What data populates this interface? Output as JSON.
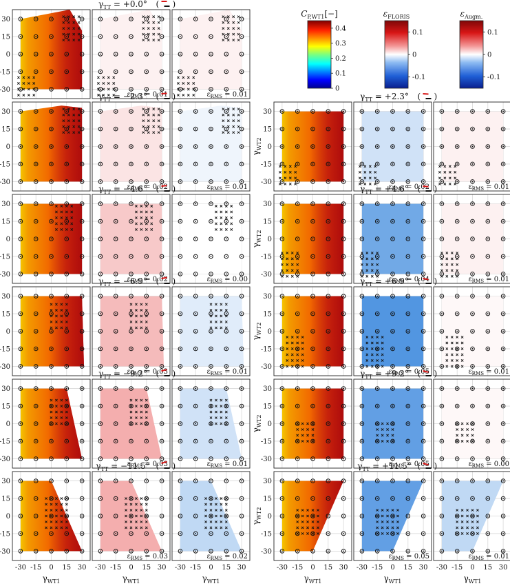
{
  "labels": {
    "gamma_tt": "γ",
    "gamma_tt_sub": "TT",
    "y_axis": "γ",
    "y_axis_sub": "WT2",
    "x_axis": "γ",
    "x_axis_sub": "WT1",
    "rms_sym": "ε",
    "rms_sub": "RMS"
  },
  "colorbars": [
    {
      "key": "cp",
      "title": "C",
      "title_sub": "P,WT1",
      "title_suffix": "[−]",
      "ticks": [
        "0.4",
        "0.3",
        "0.2",
        "0.1",
        "0"
      ],
      "tick_values": [
        0.4,
        0.3,
        0.2,
        0.1,
        0
      ],
      "range": [
        0,
        0.45
      ],
      "colormap": "jet"
    },
    {
      "key": "floris",
      "title": "ε",
      "title_sub": "FLORIS",
      "title_suffix": "",
      "ticks": [
        "0.1",
        "0",
        "-0.1"
      ],
      "tick_values": [
        0.1,
        0,
        -0.1
      ],
      "range": [
        -0.15,
        0.15
      ],
      "colormap": "diverging"
    },
    {
      "key": "augm",
      "title": "ε",
      "title_sub": "Augm.",
      "title_suffix": "",
      "ticks": [
        "0.1",
        "0",
        "-0.1"
      ],
      "tick_values": [
        0.1,
        0,
        -0.1
      ],
      "range": [
        -0.15,
        0.15
      ],
      "colormap": "diverging"
    }
  ],
  "colors": {
    "cp_high": "#c81010",
    "cp_mid": "#f26a00",
    "cp_low": "#f5c400",
    "pos_err": "#f4a3a3",
    "neg_err": "#6aa8e8",
    "grid": "#d8d8d8"
  },
  "chart_data": {
    "type": "heatmap",
    "x_ticks": [
      "-30",
      "-15",
      "0",
      "15",
      "30"
    ],
    "y_ticks": [
      "30",
      "15",
      "0",
      "-15",
      "-30"
    ],
    "tick_values": [
      -30,
      -15,
      0,
      15,
      30
    ],
    "panel_types": [
      "cp",
      "floris",
      "augm"
    ],
    "cases": [
      {
        "label": "= +0.0°",
        "col": 0,
        "row": 0,
        "rms_floris": "= 0.01",
        "rms_augm": "= 0.01",
        "floris_err": 0.01,
        "augm_err": 0.01
      },
      {
        "label": "= −2.3°",
        "col": 0,
        "row": 1,
        "rms_floris": "= 0.02",
        "rms_augm": "= 0.01",
        "floris_err": 0.02,
        "augm_err": -0.01
      },
      {
        "label": "= +2.3°",
        "col": 1,
        "row": 1,
        "rms_floris": "= 0.02",
        "rms_augm": "= 0.01",
        "floris_err": -0.03,
        "augm_err": 0.01
      },
      {
        "label": "= −4.6°",
        "col": 0,
        "row": 2,
        "rms_floris": "= 0.02",
        "rms_augm": "= 0.00",
        "floris_err": 0.04,
        "augm_err": 0.0
      },
      {
        "label": "= +4.6°",
        "col": 1,
        "row": 2,
        "rms_floris": "= 0.04",
        "rms_augm": "= 0.01",
        "floris_err": -0.09,
        "augm_err": 0.01
      },
      {
        "label": "= −6.9°",
        "col": 0,
        "row": 3,
        "rms_floris": "= 0.03",
        "rms_augm": "= 0.01",
        "floris_err": 0.05,
        "augm_err": -0.02
      },
      {
        "label": "= +6.9°",
        "col": 1,
        "row": 3,
        "rms_floris": "= 0.05",
        "rms_augm": "= 0.01",
        "floris_err": -0.11,
        "augm_err": 0.005
      },
      {
        "label": "= −9.2°",
        "col": 0,
        "row": 4,
        "rms_floris": "= 0.03",
        "rms_augm": "= 0.01",
        "floris_err": 0.06,
        "augm_err": -0.03
      },
      {
        "label": "= +9.2°",
        "col": 1,
        "row": 4,
        "rms_floris": "= 0.05",
        "rms_augm": "= 0.00",
        "floris_err": -0.1,
        "augm_err": 0.005
      },
      {
        "label": "= −11.5°",
        "col": 0,
        "row": 5,
        "rms_floris": "= 0.03",
        "rms_augm": "= 0.02",
        "floris_err": 0.06,
        "augm_err": -0.04
      },
      {
        "label": "= +11.5°",
        "col": 1,
        "row": 5,
        "rms_floris": "= 0.05",
        "rms_augm": "= 0.01",
        "floris_err": -0.1,
        "augm_err": -0.04
      }
    ],
    "measurement_points": [
      [
        -30,
        30
      ],
      [
        -15,
        30
      ],
      [
        0,
        30
      ],
      [
        15,
        30
      ],
      [
        30,
        30
      ],
      [
        -30,
        15
      ],
      [
        -15,
        15
      ],
      [
        0,
        15
      ],
      [
        15,
        15
      ],
      [
        30,
        15
      ],
      [
        -30,
        0
      ],
      [
        -15,
        0
      ],
      [
        0,
        0
      ],
      [
        15,
        0
      ],
      [
        30,
        0
      ],
      [
        -30,
        -15
      ],
      [
        -15,
        -15
      ],
      [
        0,
        -15
      ],
      [
        15,
        -15
      ],
      [
        30,
        -15
      ],
      [
        -30,
        -30
      ],
      [
        -15,
        -30
      ],
      [
        0,
        -30
      ],
      [
        15,
        -30
      ],
      [
        30,
        -30
      ]
    ],
    "grid": true
  }
}
